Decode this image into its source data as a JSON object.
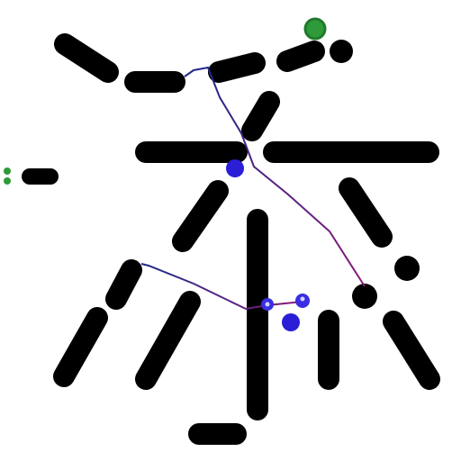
{
  "colors": {
    "background": "#ffffff",
    "wall": "#000000",
    "path_start": "#1b2a8a",
    "path_end": "#8a1a78",
    "agent": "#2a1fd6",
    "agent_light": "#5a5cf0",
    "goal": "#2f9a3a",
    "goal_rim": "#1f7a2a",
    "marker": "#2f9a3a"
  },
  "scene": {
    "walls": "black-stroke-obstacles",
    "agents": "blue-circles",
    "goal": "green-circle",
    "trajectories": "gradient-lines"
  }
}
